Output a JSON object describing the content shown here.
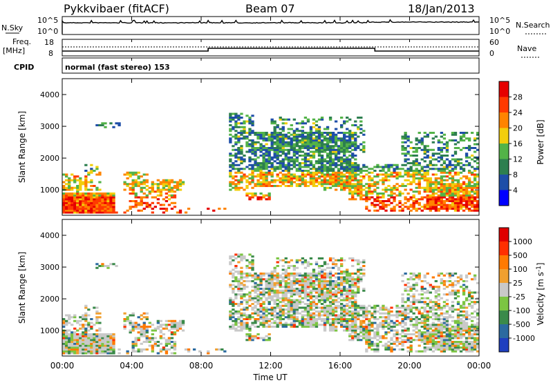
{
  "header": {
    "station": "Pykkvibaer (fitACF)",
    "beam": "Beam 07",
    "date": "18/Jan/2013"
  },
  "strip_labels": {
    "nsky": "N.Sky",
    "nsky_ticks": [
      "10^5",
      "10^0"
    ],
    "nsearch": "N.Search",
    "nsearch_ticks": [
      "10^5",
      "10^0"
    ],
    "freq": "Freq.",
    "freq_unit": "[MHz]",
    "freq_ticks": [
      "18",
      "8"
    ],
    "nave": "Nave",
    "nave_ticks": [
      "60",
      "0"
    ],
    "cpid": "CPID",
    "cpid_value": "normal (fast stereo) 153"
  },
  "chart_data": [
    {
      "type": "heatmap",
      "name": "power",
      "ylabel": "Slant Range [km]",
      "ylim": [
        200,
        4500
      ],
      "yticks": [
        "4000",
        "3000",
        "2000",
        "1000"
      ],
      "colorbar_label": "Power [dB]",
      "colorbar_ticks": [
        "28",
        "24",
        "20",
        "16",
        "12",
        "8",
        "4"
      ],
      "colors": [
        "#0000ff",
        "#1e4ea8",
        "#2d7f4f",
        "#53b348",
        "#f2ce0c",
        "#ff8400",
        "#ff3a00",
        "#e60000"
      ]
    },
    {
      "type": "heatmap",
      "name": "velocity",
      "ylabel": "Slant Range [km]",
      "ylim": [
        200,
        4500
      ],
      "yticks": [
        "4000",
        "3000",
        "2000",
        "1000"
      ],
      "colorbar_label": "Velocity [m s-1]",
      "colorbar_label_main": "Velocity [m s",
      "colorbar_label_sup": "-1",
      "colorbar_label_end": "]",
      "colorbar_ticks": [
        "1000",
        "500",
        "100",
        "25",
        "-25",
        "-100",
        "-500",
        "-1000"
      ],
      "colors": [
        "#1f3fbf",
        "#2b6aa0",
        "#3a8a4a",
        "#7cc542",
        "#c9c9c9",
        "#f0a030",
        "#ff7a00",
        "#ff3000",
        "#e00000"
      ]
    }
  ],
  "x_axis": {
    "label": "Time UT",
    "ticks": [
      "00:00",
      "04:00",
      "08:00",
      "12:00",
      "16:00",
      "20:00",
      "00:00"
    ]
  }
}
